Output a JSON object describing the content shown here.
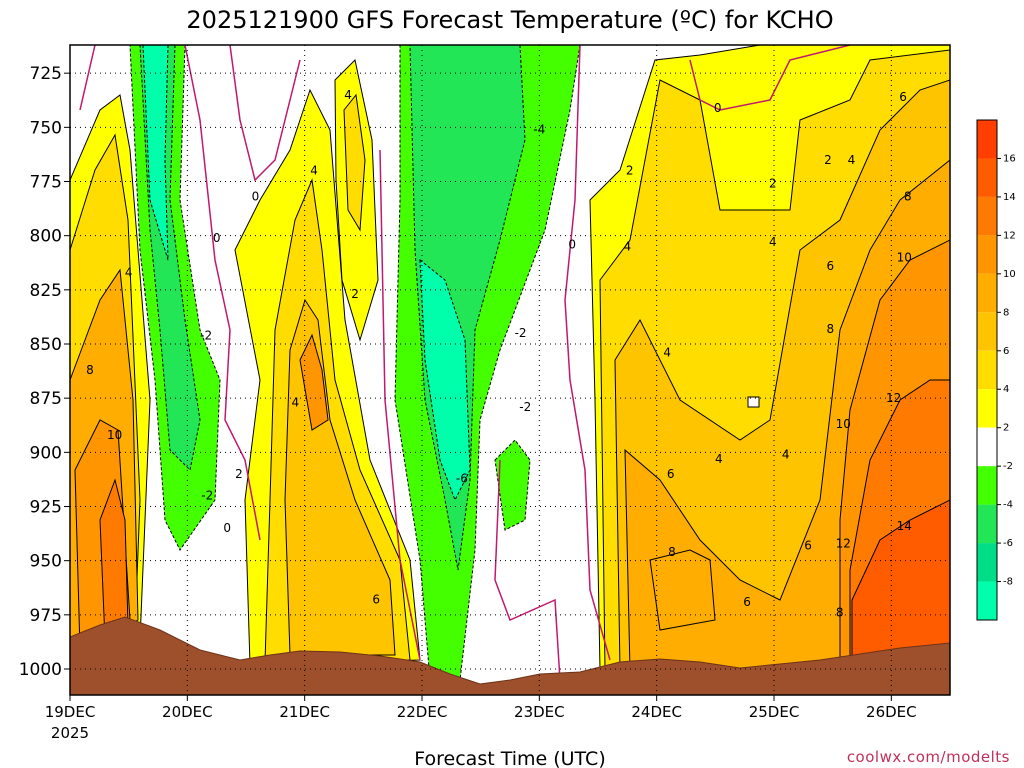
{
  "chart_data": {
    "type": "heatmap",
    "title": "2025121900 GFS Forecast Temperature (ºC) for KCHO",
    "xlabel": "Forecast Time (UTC)",
    "ylabel": "",
    "credit": "coolwx.com/modelts",
    "x_ticks": [
      "19DEC",
      "20DEC",
      "21DEC",
      "22DEC",
      "23DEC",
      "24DEC",
      "25DEC",
      "26DEC"
    ],
    "x_year_label": "2025",
    "y_ticks": [
      725,
      750,
      775,
      800,
      825,
      850,
      875,
      900,
      925,
      950,
      975,
      1000
    ],
    "ylim": [
      1012,
      712
    ],
    "xlim": [
      0,
      7.5
    ],
    "colorbar": {
      "labels": [
        16,
        14,
        12,
        10,
        8,
        6,
        4,
        2,
        -2,
        -4,
        -6,
        -8
      ],
      "colors": [
        "#ff3e00",
        "#ff5c00",
        "#ff7a00",
        "#ff9500",
        "#ffad00",
        "#ffc400",
        "#ffdd00",
        "#ffff00",
        "#ffffff",
        "#44ff00",
        "#22e655",
        "#00dd88",
        "#00ffaa"
      ]
    },
    "contour_labels": [
      {
        "text": "0",
        "x": 1.58,
        "y": 782
      },
      {
        "text": "0",
        "x": 1.25,
        "y": 801
      },
      {
        "text": "-2",
        "x": 1.16,
        "y": 846
      },
      {
        "text": "2",
        "x": 1.44,
        "y": 910
      },
      {
        "text": "-2",
        "x": 1.17,
        "y": 920
      },
      {
        "text": "0",
        "x": 1.34,
        "y": 935
      },
      {
        "text": "4",
        "x": 0.5,
        "y": 817
      },
      {
        "text": "8",
        "x": 0.17,
        "y": 862
      },
      {
        "text": "10",
        "x": 0.38,
        "y": 892
      },
      {
        "text": "4",
        "x": 2.37,
        "y": 735
      },
      {
        "text": "4",
        "x": 2.08,
        "y": 770
      },
      {
        "text": "2",
        "x": 2.43,
        "y": 827
      },
      {
        "text": "4",
        "x": 1.92,
        "y": 877
      },
      {
        "text": "6",
        "x": 2.61,
        "y": 968
      },
      {
        "text": "-4",
        "x": 4.0,
        "y": 751
      },
      {
        "text": "-2",
        "x": 3.84,
        "y": 845
      },
      {
        "text": "-2",
        "x": 3.88,
        "y": 879
      },
      {
        "text": "-6",
        "x": 3.34,
        "y": 912
      },
      {
        "text": "0",
        "x": 4.28,
        "y": 804
      },
      {
        "text": "2",
        "x": 4.77,
        "y": 770
      },
      {
        "text": "4",
        "x": 4.75,
        "y": 805
      },
      {
        "text": "4",
        "x": 5.09,
        "y": 854
      },
      {
        "text": "6",
        "x": 5.12,
        "y": 910
      },
      {
        "text": "8",
        "x": 5.13,
        "y": 946
      },
      {
        "text": "0",
        "x": 5.52,
        "y": 741
      },
      {
        "text": "2",
        "x": 5.99,
        "y": 776
      },
      {
        "text": "4",
        "x": 5.99,
        "y": 803
      },
      {
        "text": "4",
        "x": 5.53,
        "y": 903
      },
      {
        "text": "4",
        "x": 6.1,
        "y": 901
      },
      {
        "text": "6",
        "x": 5.77,
        "y": 969
      },
      {
        "text": "6",
        "x": 6.29,
        "y": 943
      },
      {
        "text": "2",
        "x": 6.46,
        "y": 765
      },
      {
        "text": "4",
        "x": 6.66,
        "y": 765
      },
      {
        "text": "6",
        "x": 6.48,
        "y": 814
      },
      {
        "text": "8",
        "x": 6.48,
        "y": 843
      },
      {
        "text": "10",
        "x": 6.59,
        "y": 887
      },
      {
        "text": "12",
        "x": 6.59,
        "y": 942
      },
      {
        "text": "8",
        "x": 6.56,
        "y": 974
      },
      {
        "text": "6",
        "x": 7.1,
        "y": 736
      },
      {
        "text": "8",
        "x": 7.14,
        "y": 782
      },
      {
        "text": "10",
        "x": 7.11,
        "y": 810
      },
      {
        "text": "12",
        "x": 7.02,
        "y": 875
      },
      {
        "text": "14",
        "x": 7.11,
        "y": 934
      }
    ]
  }
}
